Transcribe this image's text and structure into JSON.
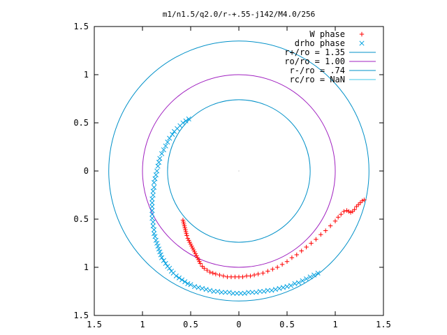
{
  "chart_data": {
    "type": "scatter",
    "title": "m1/n1.5/q2.0/r-+.55-j142/M4.0/256",
    "xlim": [
      -1.5,
      1.5
    ],
    "ylim": [
      -1.5,
      1.5
    ],
    "x_ticks": [
      -1.5,
      -1,
      -0.5,
      0,
      0.5,
      1,
      1.5
    ],
    "x_tick_labels": [
      "1.5",
      "1",
      "0.5",
      "0",
      "0.5",
      "1",
      "1.5"
    ],
    "y_ticks": [
      1.5,
      1,
      0.5,
      0,
      -0.5,
      -1,
      -1.5
    ],
    "y_tick_labels": [
      "1.5",
      "1",
      "0.5",
      "0",
      "0.5",
      "1",
      "1.5"
    ],
    "grid": false,
    "legend_position": "top-right",
    "series": [
      {
        "name": "W phase",
        "kind": "points",
        "marker": "plus",
        "color": "#ff0000",
        "x": [
          -0.58,
          -0.575,
          -0.57,
          -0.565,
          -0.56,
          -0.555,
          -0.55,
          -0.545,
          -0.54,
          -0.53,
          -0.52,
          -0.51,
          -0.5,
          -0.49,
          -0.48,
          -0.47,
          -0.46,
          -0.45,
          -0.44,
          -0.43,
          -0.42,
          -0.41,
          -0.4,
          -0.38,
          -0.36,
          -0.33,
          -0.3,
          -0.27,
          -0.24,
          -0.2,
          -0.16,
          -0.12,
          -0.08,
          -0.04,
          0.0,
          0.04,
          0.08,
          0.12,
          0.16,
          0.2,
          0.25,
          0.3,
          0.35,
          0.4,
          0.45,
          0.5,
          0.55,
          0.6,
          0.65,
          0.7,
          0.75,
          0.8,
          0.85,
          0.9,
          0.95,
          1.0,
          1.03,
          1.06,
          1.09,
          1.12,
          1.14,
          1.16,
          1.18,
          1.2,
          1.22,
          1.24,
          1.26,
          1.28,
          1.3
        ],
        "y": [
          -0.51,
          -0.53,
          -0.55,
          -0.57,
          -0.59,
          -0.61,
          -0.63,
          -0.65,
          -0.67,
          -0.7,
          -0.72,
          -0.74,
          -0.76,
          -0.78,
          -0.8,
          -0.82,
          -0.84,
          -0.86,
          -0.88,
          -0.9,
          -0.92,
          -0.94,
          -0.96,
          -0.99,
          -1.01,
          -1.03,
          -1.05,
          -1.06,
          -1.07,
          -1.08,
          -1.09,
          -1.1,
          -1.1,
          -1.1,
          -1.1,
          -1.1,
          -1.09,
          -1.09,
          -1.08,
          -1.07,
          -1.06,
          -1.04,
          -1.02,
          -1.0,
          -0.97,
          -0.94,
          -0.9,
          -0.87,
          -0.83,
          -0.79,
          -0.75,
          -0.71,
          -0.66,
          -0.62,
          -0.57,
          -0.52,
          -0.48,
          -0.45,
          -0.42,
          -0.41,
          -0.42,
          -0.43,
          -0.42,
          -0.4,
          -0.37,
          -0.35,
          -0.33,
          -0.31,
          -0.3
        ]
      },
      {
        "name": "drho phase",
        "kind": "points",
        "marker": "cross",
        "color": "#00a0e0",
        "x": [
          -0.52,
          -0.55,
          -0.58,
          -0.61,
          -0.64,
          -0.67,
          -0.69,
          -0.72,
          -0.74,
          -0.76,
          -0.78,
          -0.8,
          -0.82,
          -0.83,
          -0.84,
          -0.85,
          -0.86,
          -0.87,
          -0.88,
          -0.88,
          -0.89,
          -0.89,
          -0.9,
          -0.9,
          -0.9,
          -0.9,
          -0.9,
          -0.9,
          -0.89,
          -0.89,
          -0.88,
          -0.88,
          -0.87,
          -0.86,
          -0.85,
          -0.84,
          -0.83,
          -0.82,
          -0.81,
          -0.8,
          -0.78,
          -0.76,
          -0.74,
          -0.72,
          -0.7,
          -0.68,
          -0.65,
          -0.62,
          -0.59,
          -0.56,
          -0.53,
          -0.5,
          -0.46,
          -0.42,
          -0.38,
          -0.34,
          -0.3,
          -0.26,
          -0.22,
          -0.18,
          -0.14,
          -0.1,
          -0.06,
          -0.02,
          0.02,
          0.06,
          0.1,
          0.14,
          0.18,
          0.22,
          0.26,
          0.3,
          0.34,
          0.38,
          0.42,
          0.46,
          0.5,
          0.54,
          0.58,
          0.62,
          0.66,
          0.7,
          0.74,
          0.78,
          0.82
        ],
        "y": [
          0.54,
          0.52,
          0.5,
          0.47,
          0.44,
          0.41,
          0.38,
          0.34,
          0.3,
          0.26,
          0.22,
          0.18,
          0.13,
          0.09,
          0.05,
          0.0,
          -0.04,
          -0.08,
          -0.12,
          -0.17,
          -0.21,
          -0.25,
          -0.29,
          -0.33,
          -0.37,
          -0.41,
          -0.45,
          -0.49,
          -0.53,
          -0.57,
          -0.61,
          -0.65,
          -0.68,
          -0.72,
          -0.75,
          -0.78,
          -0.81,
          -0.84,
          -0.87,
          -0.9,
          -0.93,
          -0.96,
          -0.99,
          -1.01,
          -1.04,
          -1.06,
          -1.09,
          -1.11,
          -1.13,
          -1.15,
          -1.17,
          -1.18,
          -1.2,
          -1.21,
          -1.22,
          -1.23,
          -1.24,
          -1.25,
          -1.25,
          -1.26,
          -1.26,
          -1.26,
          -1.27,
          -1.27,
          -1.27,
          -1.27,
          -1.26,
          -1.26,
          -1.26,
          -1.25,
          -1.25,
          -1.24,
          -1.24,
          -1.23,
          -1.22,
          -1.21,
          -1.2,
          -1.19,
          -1.17,
          -1.16,
          -1.14,
          -1.12,
          -1.1,
          -1.08,
          -1.06
        ]
      },
      {
        "name": "r+/ro = 1.35",
        "kind": "circle",
        "radius": 1.35,
        "color": "#0090c8"
      },
      {
        "name": "ro/ro = 1.00",
        "kind": "circle",
        "radius": 1.0,
        "color": "#a020c0"
      },
      {
        "name": "r-/ro = .74",
        "kind": "circle",
        "radius": 0.74,
        "color": "#0090c8"
      },
      {
        "name": "rc/ro = NaN",
        "kind": "circle",
        "radius": null,
        "color": "#40c8e8"
      }
    ]
  }
}
